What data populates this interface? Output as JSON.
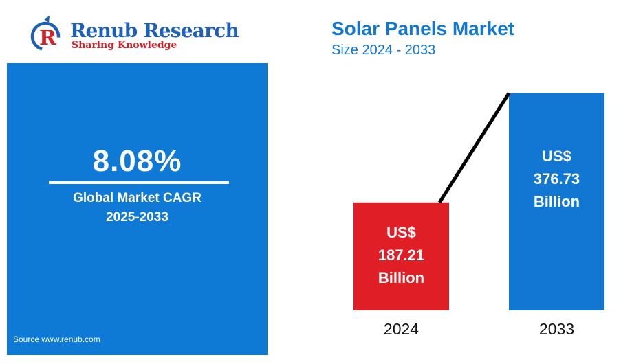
{
  "brand": {
    "name": "Renub Research",
    "tagline": "Sharing Knowledge",
    "colors": {
      "blue": "#1f5fb8",
      "red": "#d62027"
    }
  },
  "left_panel": {
    "cagr_value": "8.08%",
    "cagr_label": "Global Market CAGR",
    "cagr_period": "2025-2033",
    "source": "Source  www.renub.com",
    "color": "#0f7ad6"
  },
  "chart_data": {
    "type": "bar",
    "title": "Solar Panels Market",
    "subtitle": "Size 2024 - 2033",
    "categories": [
      "2024",
      "2033"
    ],
    "values": [
      187.21,
      376.73
    ],
    "unit_prefix": "US$",
    "unit_suffix": "Billion",
    "bar_labels": [
      [
        "US$",
        "187.21",
        "Billion"
      ],
      [
        "US$",
        "376.73",
        "Billion"
      ]
    ],
    "colors": [
      "#e01e25",
      "#1177d2"
    ],
    "connector_line": true,
    "ylim": [
      0,
      400
    ],
    "grid": false,
    "legend": "none"
  }
}
